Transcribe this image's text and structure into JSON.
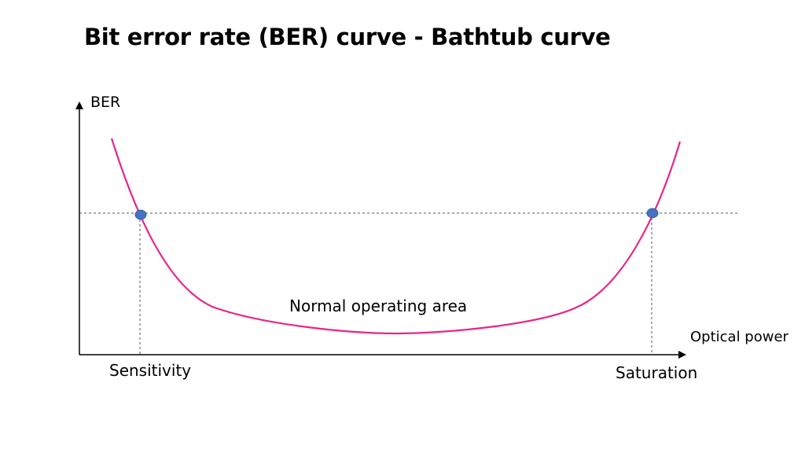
{
  "title": "Bit error rate (BER) curve - Bathtub curve",
  "labels": {
    "y_axis": "BER",
    "x_axis": "Optical power",
    "sensitivity": "Sensitivity",
    "saturation": "Saturation",
    "region": "Normal operating area"
  },
  "colors": {
    "curve": "#e6268c",
    "marker": "#4472c4",
    "axis": "#000000",
    "guide": "#555555"
  }
}
